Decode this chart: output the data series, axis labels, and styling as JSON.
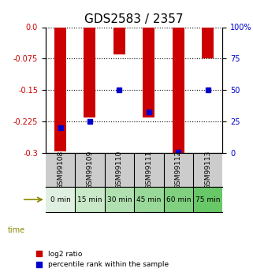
{
  "title": "GDS2583 / 2357",
  "samples": [
    "GSM99108",
    "GSM99109",
    "GSM99110",
    "GSM99111",
    "GSM99112",
    "GSM99113"
  ],
  "time_labels": [
    "0 min",
    "15 min",
    "30 min",
    "45 min",
    "60 min",
    "75 min"
  ],
  "log2_ratio": [
    -0.295,
    -0.215,
    -0.065,
    -0.215,
    -0.3,
    -0.075
  ],
  "percentile_rank": [
    20,
    25,
    50,
    33,
    1,
    50
  ],
  "ylim_left": [
    -0.3,
    0.0
  ],
  "ylim_right": [
    0,
    100
  ],
  "yticks_left": [
    0.0,
    -0.075,
    -0.15,
    -0.225,
    -0.3
  ],
  "yticks_right": [
    100,
    75,
    50,
    25,
    0
  ],
  "bar_color": "#cc0000",
  "dot_color": "#0000cc",
  "bar_width": 0.4,
  "grid_color": "#000000",
  "bg_color": "#ffffff",
  "plot_bg": "#ffffff",
  "gsm_bg": "#cccccc",
  "time_bg_colors": [
    "#e0f0e0",
    "#c8e8c8",
    "#b0e0b0",
    "#98d898",
    "#80d080",
    "#68c868"
  ],
  "legend_bar_label": "log2 ratio",
  "legend_dot_label": "percentile rank within the sample",
  "time_label": "time"
}
